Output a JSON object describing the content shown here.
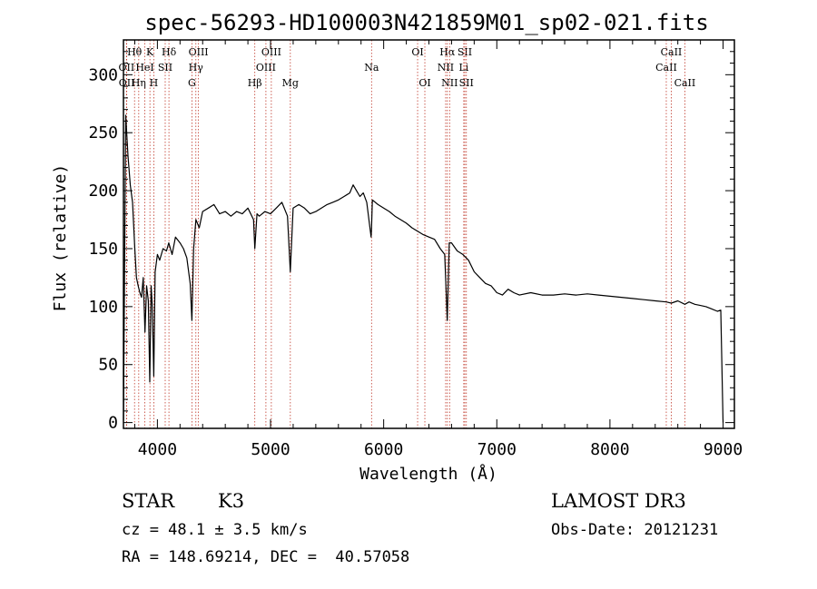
{
  "chart_data": {
    "type": "line",
    "title": "spec-56293-HD100003N421859M01_sp02-021.fits",
    "xlabel": "Wavelength (Å)",
    "ylabel": "Flux (relative)",
    "xlim": [
      3700,
      9100
    ],
    "ylim": [
      -5,
      330
    ],
    "xticks": [
      4000,
      5000,
      6000,
      7000,
      8000,
      9000
    ],
    "yticks": [
      0,
      50,
      100,
      150,
      200,
      250,
      300
    ],
    "series": [
      {
        "name": "flux",
        "x": [
          3700,
          3720,
          3740,
          3760,
          3780,
          3800,
          3815,
          3830,
          3845,
          3860,
          3875,
          3890,
          3905,
          3920,
          3933,
          3945,
          3955,
          3968,
          3980,
          4000,
          4020,
          4050,
          4080,
          4100,
          4130,
          4160,
          4200,
          4230,
          4260,
          4290,
          4305,
          4320,
          4340,
          4370,
          4400,
          4450,
          4500,
          4550,
          4600,
          4650,
          4700,
          4750,
          4800,
          4850,
          4861,
          4880,
          4900,
          4950,
          5000,
          5050,
          5100,
          5150,
          5175,
          5200,
          5250,
          5300,
          5350,
          5400,
          5450,
          5500,
          5550,
          5600,
          5650,
          5700,
          5730,
          5760,
          5790,
          5820,
          5850,
          5889,
          5893,
          5900,
          5950,
          6000,
          6050,
          6100,
          6150,
          6200,
          6250,
          6300,
          6350,
          6400,
          6450,
          6500,
          6540,
          6562,
          6580,
          6600,
          6650,
          6700,
          6750,
          6800,
          6850,
          6900,
          6950,
          7000,
          7050,
          7100,
          7150,
          7200,
          7300,
          7400,
          7500,
          7600,
          7700,
          7800,
          7900,
          8000,
          8100,
          8200,
          8300,
          8400,
          8498,
          8542,
          8600,
          8662,
          8700,
          8750,
          8800,
          8850,
          8900,
          8950,
          8980,
          9000
        ],
        "values": [
          2,
          265,
          230,
          205,
          190,
          150,
          125,
          118,
          112,
          108,
          125,
          78,
          118,
          105,
          35,
          118,
          100,
          40,
          130,
          145,
          140,
          150,
          148,
          155,
          145,
          160,
          155,
          150,
          142,
          120,
          88,
          150,
          175,
          168,
          182,
          185,
          188,
          180,
          182,
          178,
          182,
          180,
          185,
          175,
          150,
          180,
          178,
          182,
          180,
          185,
          190,
          178,
          130,
          185,
          188,
          185,
          180,
          182,
          185,
          188,
          190,
          192,
          195,
          198,
          205,
          200,
          195,
          198,
          190,
          160,
          168,
          192,
          188,
          185,
          182,
          178,
          175,
          172,
          168,
          165,
          162,
          160,
          158,
          150,
          145,
          88,
          155,
          155,
          148,
          145,
          140,
          130,
          125,
          120,
          118,
          112,
          110,
          115,
          112,
          110,
          112,
          110,
          110,
          111,
          110,
          111,
          110,
          109,
          108,
          107,
          106,
          105,
          104,
          103,
          105,
          102,
          104,
          102,
          101,
          100,
          98,
          96,
          97,
          0
        ]
      }
    ],
    "spectral_lines": [
      {
        "name": "Hθ",
        "wavelength": 3798,
        "row": 0
      },
      {
        "name": "OII",
        "wavelength": 3727,
        "row": 1
      },
      {
        "name": "OII",
        "wavelength": 3729,
        "row": 2
      },
      {
        "name": "HeI",
        "wavelength": 3889,
        "row": 1
      },
      {
        "name": "K",
        "wavelength": 3934,
        "row": 0
      },
      {
        "name": "Hη",
        "wavelength": 3835,
        "row": 2
      },
      {
        "name": "H",
        "wavelength": 3968,
        "row": 2
      },
      {
        "name": "SII",
        "wavelength": 4069,
        "row": 1
      },
      {
        "name": "Hδ",
        "wavelength": 4102,
        "row": 0
      },
      {
        "name": "OIII",
        "wavelength": 4363,
        "row": 0
      },
      {
        "name": "Hγ",
        "wavelength": 4340,
        "row": 1
      },
      {
        "name": "G",
        "wavelength": 4305,
        "row": 2
      },
      {
        "name": "Hβ",
        "wavelength": 4861,
        "row": 2
      },
      {
        "name": "OIII",
        "wavelength": 5007,
        "row": 0
      },
      {
        "name": "OIII",
        "wavelength": 4959,
        "row": 1
      },
      {
        "name": "Mg",
        "wavelength": 5175,
        "row": 2
      },
      {
        "name": "Na",
        "wavelength": 5893,
        "row": 1
      },
      {
        "name": "OI",
        "wavelength": 6300,
        "row": 0
      },
      {
        "name": "OI",
        "wavelength": 6364,
        "row": 2
      },
      {
        "name": "Hα",
        "wavelength": 6563,
        "row": 0
      },
      {
        "name": "NII",
        "wavelength": 6548,
        "row": 1
      },
      {
        "name": "NII",
        "wavelength": 6583,
        "row": 2
      },
      {
        "name": "SII",
        "wavelength": 6717,
        "row": 0
      },
      {
        "name": "Li",
        "wavelength": 6708,
        "row": 1
      },
      {
        "name": "SII",
        "wavelength": 6731,
        "row": 2
      },
      {
        "name": "CaII",
        "wavelength": 8542,
        "row": 0
      },
      {
        "name": "CaII",
        "wavelength": 8498,
        "row": 1
      },
      {
        "name": "CaII",
        "wavelength": 8662,
        "row": 2
      }
    ]
  },
  "info": {
    "object_class": "STAR",
    "subclass": "K3",
    "survey": "LAMOST DR3",
    "cz": "cz = 48.1 ± 3.5 km/s",
    "obs_date": "Obs-Date: 20121231",
    "coords": "RA = 148.69214, DEC =  40.57058"
  }
}
